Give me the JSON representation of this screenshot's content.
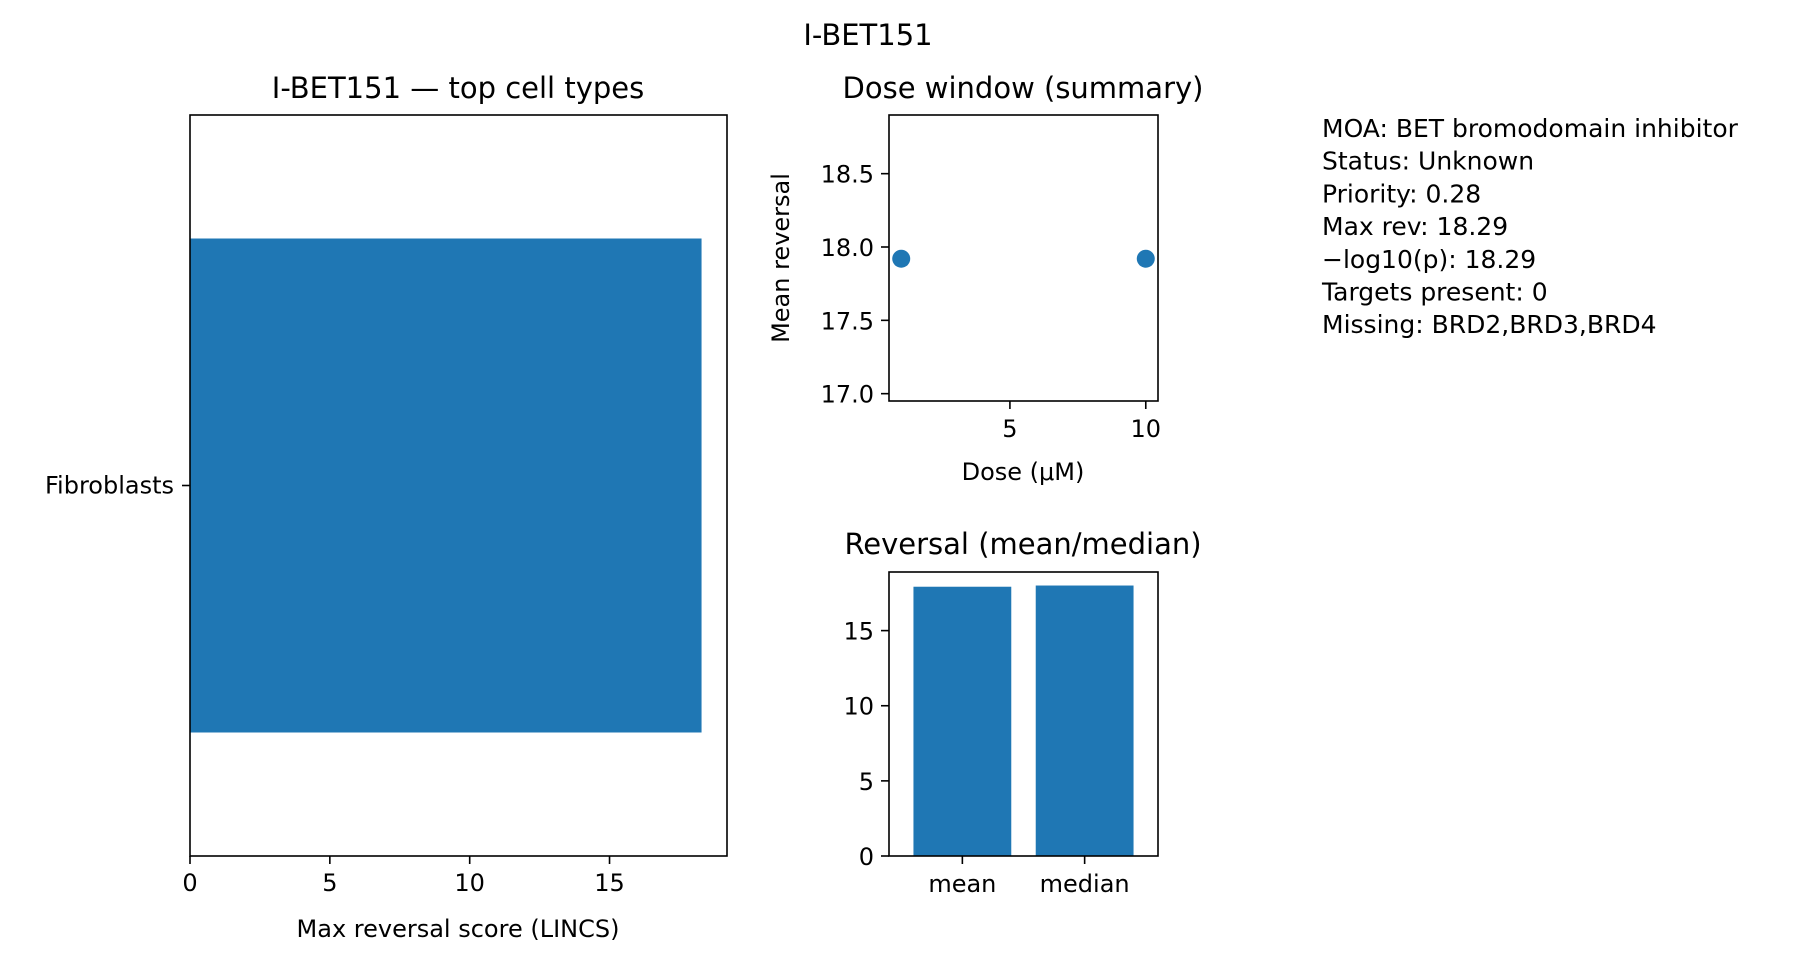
{
  "suptitle": "I-BET151",
  "chart_data": [
    {
      "type": "bar",
      "orientation": "horizontal",
      "title": "I-BET151 — top cell types",
      "xlabel": "Max reversal score (LINCS)",
      "ylabel": "",
      "categories": [
        "Fibroblasts"
      ],
      "values": [
        18.29
      ],
      "xlim": [
        0,
        19.2
      ],
      "xticks": [
        0,
        5,
        10,
        15
      ],
      "color": "#1f77b4",
      "grid": false
    },
    {
      "type": "scatter",
      "title": "Dose window (summary)",
      "xlabel": "Dose (μM)",
      "ylabel": "Mean reversal",
      "x": [
        1,
        10
      ],
      "y": [
        17.92,
        17.92
      ],
      "xlim": [
        0.55,
        10.45
      ],
      "ylim": [
        16.95,
        18.9
      ],
      "xticks": [
        5,
        10
      ],
      "yticks": [
        17.0,
        17.5,
        18.0,
        18.5
      ],
      "ytick_labels": [
        "17.0",
        "17.5",
        "18.0",
        "18.5"
      ],
      "color": "#1f77b4",
      "grid": false
    },
    {
      "type": "bar",
      "title": "Reversal (mean/median)",
      "xlabel": "",
      "ylabel": "",
      "categories": [
        "mean",
        "median"
      ],
      "values": [
        17.92,
        18.0
      ],
      "ylim": [
        0,
        18.9
      ],
      "yticks": [
        0,
        5,
        10,
        15
      ],
      "color": "#1f77b4",
      "grid": false
    }
  ],
  "info_lines": [
    "MOA: BET bromodomain inhibitor",
    "Status: Unknown",
    "Priority: 0.28",
    "Max rev: 18.29",
    "−log10(p): 18.29",
    "Targets present: 0",
    "Missing: BRD2,BRD3,BRD4"
  ]
}
